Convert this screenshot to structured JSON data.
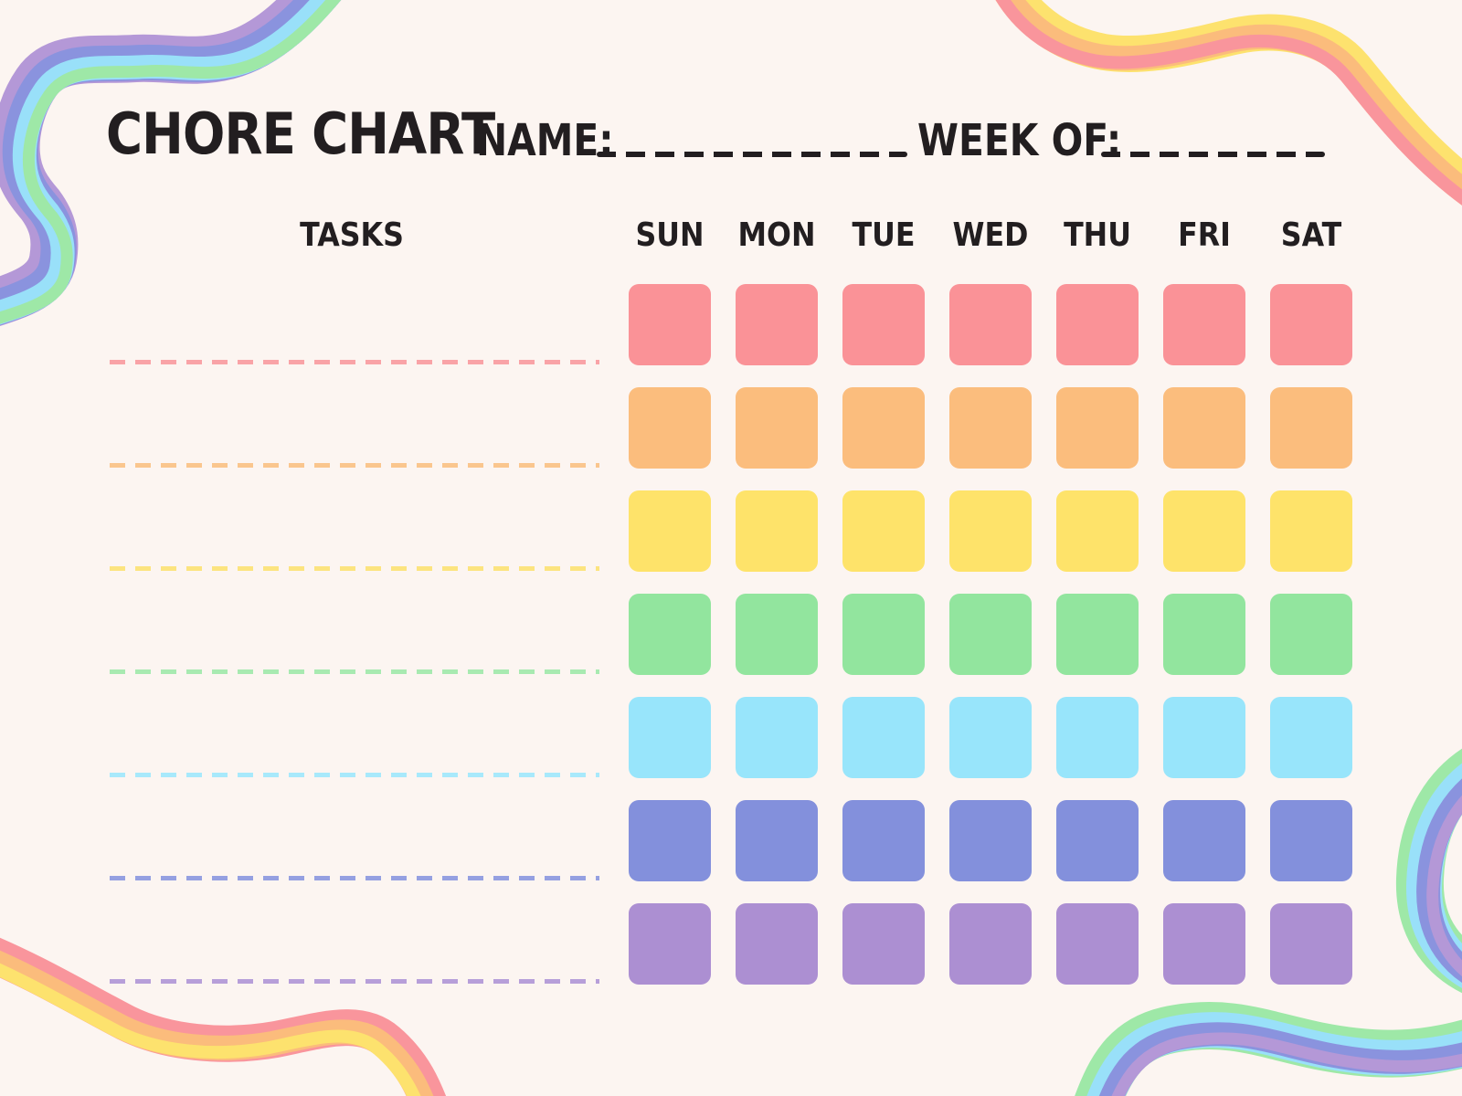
{
  "page": {
    "background": "#FCF5F1",
    "ink": "#221E20"
  },
  "header": {
    "title": "CHORE CHART",
    "name_label": "NAME:",
    "week_label": "WEEK OF:"
  },
  "table": {
    "tasks_label": "TASKS",
    "days": [
      "SUN",
      "MON",
      "TUE",
      "WED",
      "THU",
      "FRI",
      "SAT"
    ],
    "rows": [
      {
        "name": "red-row",
        "color": "#FA9297",
        "line_color": "#F9A3A7"
      },
      {
        "name": "orange-row",
        "color": "#FBBD7D",
        "line_color": "#FAC68E"
      },
      {
        "name": "yellow-row",
        "color": "#FEE36A",
        "line_color": "#FCE47F"
      },
      {
        "name": "green-row",
        "color": "#92E59E",
        "line_color": "#A8EAB1"
      },
      {
        "name": "cyan-row",
        "color": "#98E5FB",
        "line_color": "#A8E9FB"
      },
      {
        "name": "periwinkle-row",
        "color": "#8390DC",
        "line_color": "#95A0E1"
      },
      {
        "name": "purple-row",
        "color": "#AC8FD2",
        "line_color": "#B79FD9"
      }
    ]
  },
  "ribbons": {
    "cool": {
      "purple": "#B498D7",
      "periwinkle": "#8A93DE",
      "cyan": "#99E0F9",
      "green": "#9EE8A7"
    },
    "warm": {
      "yellow": "#FDE26E",
      "orange": "#FBBC7C",
      "pink": "#F9959C"
    }
  }
}
